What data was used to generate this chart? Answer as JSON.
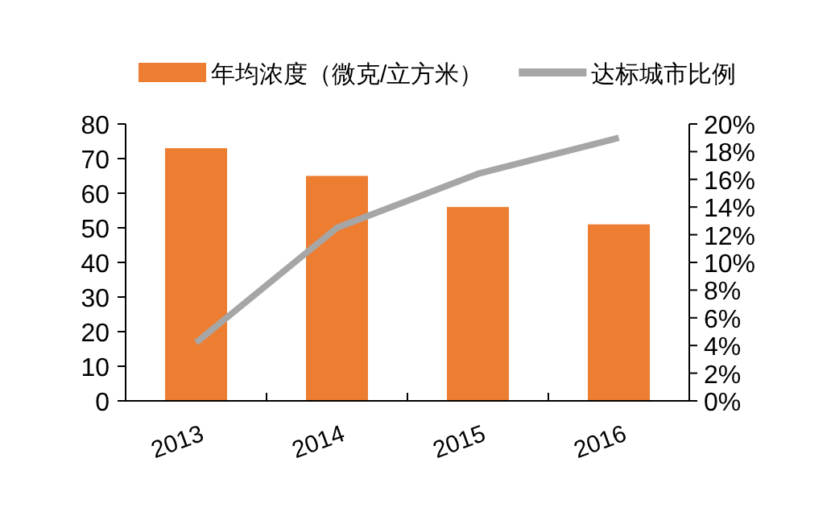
{
  "chart_data": {
    "type": "bar",
    "categories": [
      "2013",
      "2014",
      "2015",
      "2016"
    ],
    "series": [
      {
        "name": "年均浓度（微克/立方米）",
        "color": "#ed7d31",
        "values": [
          73,
          65,
          56,
          51
        ]
      },
      {
        "name": "达标城市比例",
        "type": "line",
        "axis": "y2",
        "color": "#a6a6a6",
        "values": [
          4.2,
          12.5,
          16.4,
          19
        ]
      }
    ],
    "ylim": [
      0,
      80
    ],
    "yticks": [
      0,
      10,
      20,
      30,
      40,
      50,
      60,
      70,
      80
    ],
    "y2lim": [
      0,
      20
    ],
    "y2ticks": [
      {
        "value": 0,
        "label": "0%"
      },
      {
        "value": 2,
        "label": "2%"
      },
      {
        "value": 4,
        "label": "4%"
      },
      {
        "value": 6,
        "label": "6%"
      },
      {
        "value": 8,
        "label": "8%"
      },
      {
        "value": 10,
        "label": "10%"
      },
      {
        "value": 12,
        "label": "12%"
      },
      {
        "value": 14,
        "label": "14%"
      },
      {
        "value": 16,
        "label": "16%"
      },
      {
        "value": 18,
        "label": "18%"
      },
      {
        "value": 20,
        "label": "20%"
      }
    ],
    "legend": "top",
    "grid": false,
    "marker": "none",
    "line_style": "solid"
  }
}
